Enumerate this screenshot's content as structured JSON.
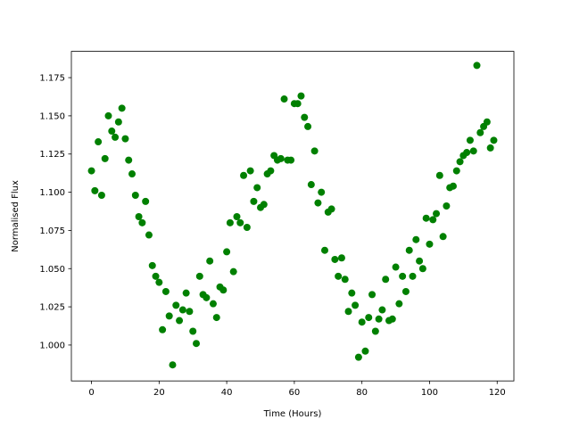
{
  "chart_data": {
    "type": "scatter",
    "xlabel": "Time (Hours)",
    "ylabel": "Normalised Flux",
    "x": [
      0,
      1,
      2,
      3,
      4,
      5,
      6,
      7,
      8,
      9,
      10,
      11,
      12,
      13,
      14,
      15,
      16,
      17,
      18,
      19,
      20,
      21,
      22,
      23,
      24,
      25,
      26,
      27,
      28,
      29,
      30,
      31,
      32,
      33,
      34,
      35,
      36,
      37,
      38,
      39,
      40,
      41,
      42,
      43,
      44,
      45,
      46,
      47,
      48,
      49,
      50,
      51,
      52,
      53,
      54,
      55,
      56,
      57,
      58,
      59,
      60,
      61,
      62,
      63,
      64,
      65,
      66,
      67,
      68,
      69,
      70,
      71,
      72,
      73,
      74,
      75,
      76,
      77,
      78,
      79,
      80,
      81,
      82,
      83,
      84,
      85,
      86,
      87,
      88,
      89,
      90,
      91,
      92,
      93,
      94,
      95,
      96,
      97,
      98,
      99,
      100,
      101,
      102,
      103,
      104,
      105,
      106,
      107,
      108,
      109,
      110,
      111,
      112,
      113,
      114,
      115,
      116,
      117,
      118,
      119
    ],
    "values": [
      1.114,
      1.101,
      1.133,
      1.098,
      1.122,
      1.15,
      1.14,
      1.136,
      1.146,
      1.155,
      1.135,
      1.121,
      1.112,
      1.098,
      1.084,
      1.08,
      1.094,
      1.072,
      1.052,
      1.045,
      1.041,
      1.01,
      1.035,
      1.019,
      0.987,
      1.026,
      1.016,
      1.023,
      1.034,
      1.022,
      1.009,
      1.001,
      1.045,
      1.033,
      1.031,
      1.055,
      1.027,
      1.018,
      1.038,
      1.036,
      1.061,
      1.08,
      1.048,
      1.084,
      1.08,
      1.111,
      1.077,
      1.114,
      1.094,
      1.103,
      1.09,
      1.092,
      1.112,
      1.114,
      1.124,
      1.121,
      1.122,
      1.161,
      1.121,
      1.121,
      1.158,
      1.158,
      1.163,
      1.149,
      1.143,
      1.105,
      1.127,
      1.093,
      1.1,
      1.062,
      1.087,
      1.089,
      1.056,
      1.045,
      1.057,
      1.043,
      1.022,
      1.034,
      1.026,
      0.992,
      1.015,
      0.996,
      1.018,
      1.033,
      1.009,
      1.017,
      1.023,
      1.043,
      1.016,
      1.017,
      1.051,
      1.027,
      1.045,
      1.035,
      1.062,
      1.045,
      1.069,
      1.055,
      1.05,
      1.083,
      1.066,
      1.082,
      1.086,
      1.111,
      1.071,
      1.091,
      1.103,
      1.104,
      1.114,
      1.12,
      1.124,
      1.126,
      1.134,
      1.127,
      1.183,
      1.139,
      1.143,
      1.146,
      1.129,
      1.134
    ],
    "color": "#008000",
    "xlim": [
      -5.95,
      124.95
    ],
    "ylim": [
      0.9765,
      1.1922
    ],
    "xticks": [
      0,
      20,
      40,
      60,
      80,
      100,
      120
    ],
    "yticks": [
      {
        "value": 1.0,
        "label": "1.000"
      },
      1.025,
      {
        "value": 1.05,
        "label": "1.050"
      },
      1.075,
      {
        "value": 1.1,
        "label": "1.100"
      },
      1.125,
      {
        "value": 1.15,
        "label": "1.150"
      },
      1.175
    ],
    "grid": false
  }
}
